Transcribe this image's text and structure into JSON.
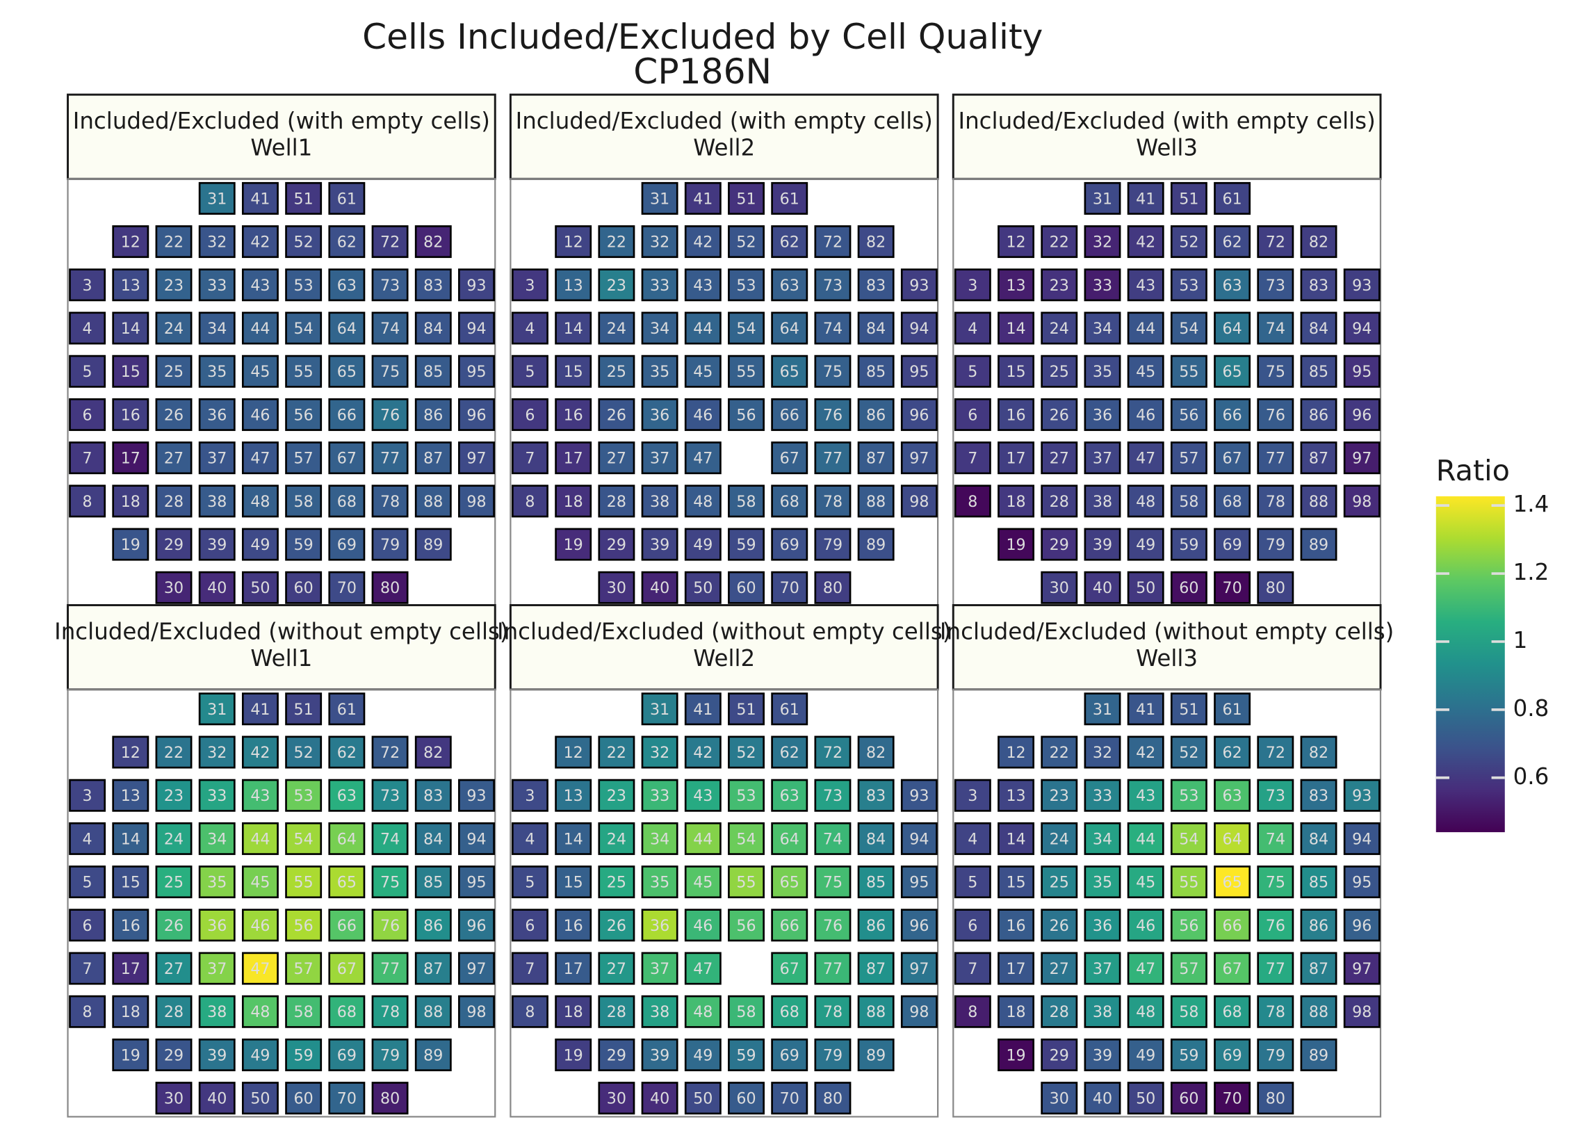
{
  "chart_data": {
    "type": "heatmap",
    "title": "Cells Included/Excluded by Cell Quality",
    "subtitle": "CP186N",
    "colorscale": "viridis",
    "legend_title": "Ratio",
    "zlim": [
      0.44,
      1.427
    ],
    "zticks": [
      0.6,
      0.8,
      1,
      1.2,
      1.4
    ],
    "panels": [
      {
        "strip": "Included/Excluded (with empty cells)",
        "well": "Well1",
        "labels": [
          31,
          41,
          51,
          61,
          12,
          22,
          32,
          42,
          52,
          62,
          72,
          82,
          3,
          13,
          23,
          33,
          43,
          53,
          63,
          73,
          83,
          93,
          4,
          14,
          24,
          34,
          44,
          54,
          64,
          74,
          84,
          94,
          5,
          15,
          25,
          35,
          45,
          55,
          65,
          75,
          85,
          95,
          6,
          16,
          26,
          36,
          46,
          56,
          66,
          76,
          86,
          96,
          7,
          17,
          27,
          37,
          47,
          57,
          67,
          77,
          87,
          97,
          8,
          18,
          28,
          38,
          48,
          58,
          68,
          78,
          88,
          98,
          19,
          29,
          39,
          49,
          59,
          69,
          79,
          89,
          30,
          40,
          50,
          60,
          70,
          80
        ],
        "values": [
          0.82,
          0.66,
          0.6,
          0.65,
          0.6,
          0.72,
          0.7,
          0.68,
          0.66,
          0.68,
          0.62,
          0.54,
          0.62,
          0.66,
          0.75,
          0.74,
          0.72,
          0.72,
          0.75,
          0.72,
          0.7,
          0.64,
          0.62,
          0.64,
          0.74,
          0.72,
          0.74,
          0.74,
          0.76,
          0.74,
          0.7,
          0.66,
          0.62,
          0.58,
          0.72,
          0.74,
          0.74,
          0.74,
          0.76,
          0.74,
          0.72,
          0.68,
          0.6,
          0.62,
          0.72,
          0.72,
          0.72,
          0.74,
          0.76,
          0.82,
          0.72,
          0.68,
          0.6,
          0.5,
          0.72,
          0.7,
          0.7,
          0.72,
          0.74,
          0.76,
          0.72,
          0.66,
          0.62,
          0.62,
          0.7,
          0.72,
          0.74,
          0.74,
          0.74,
          0.72,
          0.72,
          0.7,
          0.7,
          0.62,
          0.64,
          0.66,
          0.7,
          0.72,
          0.68,
          0.66,
          0.54,
          0.56,
          0.6,
          0.62,
          0.66,
          0.5
        ]
      },
      {
        "strip": "Included/Excluded (with empty cells)",
        "well": "Well2",
        "labels": [
          31,
          41,
          51,
          61,
          12,
          22,
          32,
          42,
          52,
          62,
          72,
          82,
          3,
          13,
          23,
          33,
          43,
          53,
          63,
          73,
          83,
          93,
          4,
          14,
          24,
          34,
          44,
          54,
          64,
          74,
          84,
          94,
          5,
          15,
          25,
          35,
          45,
          55,
          65,
          75,
          85,
          95,
          6,
          16,
          26,
          36,
          46,
          56,
          66,
          76,
          86,
          96,
          7,
          17,
          27,
          37,
          47,
          67,
          77,
          87,
          97,
          8,
          18,
          28,
          38,
          48,
          58,
          68,
          78,
          88,
          98,
          19,
          29,
          39,
          49,
          59,
          69,
          79,
          89,
          30,
          40,
          50,
          60,
          70,
          80
        ],
        "values": [
          0.72,
          0.6,
          0.58,
          0.6,
          0.64,
          0.76,
          0.74,
          0.7,
          0.7,
          0.66,
          0.7,
          0.66,
          0.6,
          0.76,
          0.86,
          0.76,
          0.72,
          0.72,
          0.74,
          0.74,
          0.7,
          0.62,
          0.62,
          0.64,
          0.72,
          0.74,
          0.76,
          0.76,
          0.76,
          0.72,
          0.7,
          0.64,
          0.62,
          0.64,
          0.74,
          0.74,
          0.74,
          0.74,
          0.8,
          0.74,
          0.7,
          0.64,
          0.6,
          0.6,
          0.7,
          0.76,
          0.7,
          0.74,
          0.74,
          0.78,
          0.74,
          0.66,
          0.62,
          0.58,
          0.72,
          0.74,
          0.74,
          0.74,
          0.78,
          0.72,
          0.68,
          0.62,
          0.58,
          0.7,
          0.7,
          0.72,
          0.74,
          0.74,
          0.74,
          0.72,
          0.66,
          0.56,
          0.6,
          0.64,
          0.64,
          0.66,
          0.68,
          0.66,
          0.68,
          0.58,
          0.54,
          0.62,
          0.68,
          0.66,
          0.62
        ]
      },
      {
        "strip": "Included/Excluded (with empty cells)",
        "well": "Well3",
        "labels": [
          31,
          41,
          51,
          61,
          12,
          22,
          32,
          42,
          52,
          62,
          72,
          82,
          3,
          13,
          23,
          33,
          43,
          53,
          63,
          73,
          83,
          93,
          4,
          14,
          24,
          34,
          44,
          54,
          64,
          74,
          84,
          94,
          5,
          15,
          25,
          35,
          45,
          55,
          65,
          75,
          85,
          95,
          6,
          16,
          26,
          36,
          46,
          56,
          66,
          76,
          86,
          96,
          7,
          17,
          27,
          37,
          47,
          57,
          67,
          77,
          87,
          97,
          8,
          18,
          28,
          38,
          48,
          58,
          68,
          78,
          88,
          98,
          19,
          29,
          39,
          49,
          59,
          69,
          79,
          89,
          30,
          40,
          50,
          60,
          70,
          80
        ],
        "values": [
          0.66,
          0.64,
          0.62,
          0.64,
          0.6,
          0.6,
          0.54,
          0.6,
          0.64,
          0.66,
          0.62,
          0.62,
          0.58,
          0.52,
          0.58,
          0.52,
          0.62,
          0.66,
          0.8,
          0.7,
          0.64,
          0.62,
          0.6,
          0.56,
          0.64,
          0.66,
          0.7,
          0.72,
          0.82,
          0.76,
          0.66,
          0.6,
          0.6,
          0.62,
          0.64,
          0.66,
          0.7,
          0.76,
          0.86,
          0.7,
          0.66,
          0.58,
          0.6,
          0.64,
          0.66,
          0.7,
          0.7,
          0.72,
          0.76,
          0.72,
          0.66,
          0.6,
          0.6,
          0.62,
          0.62,
          0.64,
          0.64,
          0.68,
          0.72,
          0.7,
          0.64,
          0.52,
          0.46,
          0.6,
          0.62,
          0.64,
          0.66,
          0.68,
          0.7,
          0.68,
          0.64,
          0.56,
          0.46,
          0.58,
          0.62,
          0.64,
          0.66,
          0.66,
          0.68,
          0.7,
          0.62,
          0.6,
          0.6,
          0.48,
          0.46,
          0.64
        ]
      },
      {
        "strip": "Included/Excluded (without empty cells)",
        "well": "Well1",
        "labels": [
          31,
          41,
          51,
          61,
          12,
          22,
          32,
          42,
          52,
          62,
          72,
          82,
          3,
          13,
          23,
          33,
          43,
          53,
          63,
          73,
          83,
          93,
          4,
          14,
          24,
          34,
          44,
          54,
          64,
          74,
          84,
          94,
          5,
          15,
          25,
          35,
          45,
          55,
          65,
          75,
          85,
          95,
          6,
          16,
          26,
          36,
          46,
          56,
          66,
          76,
          86,
          96,
          7,
          17,
          27,
          37,
          47,
          57,
          67,
          77,
          87,
          97,
          8,
          18,
          28,
          38,
          48,
          58,
          68,
          78,
          88,
          98,
          19,
          29,
          39,
          49,
          59,
          69,
          79,
          89,
          30,
          40,
          50,
          60,
          70,
          80
        ],
        "values": [
          0.9,
          0.66,
          0.64,
          0.68,
          0.64,
          0.82,
          0.84,
          0.86,
          0.82,
          0.84,
          0.72,
          0.6,
          0.64,
          0.7,
          0.94,
          1.02,
          1.12,
          1.2,
          1.06,
          0.9,
          0.82,
          0.72,
          0.66,
          0.74,
          1.02,
          1.14,
          1.28,
          1.28,
          1.22,
          1.04,
          0.82,
          0.74,
          0.66,
          0.68,
          1.06,
          1.24,
          1.22,
          1.3,
          1.3,
          1.06,
          0.86,
          0.74,
          0.64,
          0.72,
          1.1,
          1.28,
          1.28,
          1.3,
          1.16,
          1.26,
          0.92,
          0.82,
          0.66,
          0.56,
          0.92,
          1.24,
          1.42,
          1.26,
          1.28,
          1.12,
          0.86,
          0.76,
          0.66,
          0.68,
          0.88,
          1.04,
          1.16,
          1.12,
          1.08,
          0.98,
          0.86,
          0.76,
          0.7,
          0.7,
          0.82,
          0.84,
          0.92,
          0.86,
          0.86,
          0.78,
          0.58,
          0.6,
          0.66,
          0.72,
          0.76,
          0.52
        ]
      },
      {
        "strip": "Included/Excluded (without empty cells)",
        "well": "Well2",
        "labels": [
          31,
          41,
          51,
          61,
          12,
          22,
          32,
          42,
          52,
          62,
          72,
          82,
          3,
          13,
          23,
          33,
          43,
          53,
          63,
          73,
          83,
          93,
          4,
          14,
          24,
          34,
          44,
          54,
          64,
          74,
          84,
          94,
          5,
          15,
          25,
          35,
          45,
          55,
          65,
          75,
          85,
          95,
          6,
          16,
          26,
          36,
          46,
          56,
          66,
          76,
          86,
          96,
          7,
          17,
          27,
          37,
          47,
          67,
          77,
          87,
          97,
          8,
          18,
          28,
          38,
          48,
          58,
          68,
          78,
          88,
          98,
          19,
          29,
          39,
          49,
          59,
          69,
          79,
          89,
          30,
          40,
          50,
          60,
          70,
          80
        ],
        "values": [
          0.86,
          0.7,
          0.66,
          0.68,
          0.78,
          0.84,
          0.9,
          0.84,
          0.84,
          0.82,
          0.86,
          0.78,
          0.66,
          0.82,
          1.0,
          1.1,
          1.04,
          1.12,
          1.1,
          1.0,
          0.86,
          0.7,
          0.66,
          0.74,
          1.02,
          1.2,
          1.24,
          1.2,
          1.14,
          1.1,
          0.84,
          0.72,
          0.66,
          0.74,
          1.04,
          1.14,
          1.16,
          1.26,
          1.22,
          1.12,
          0.92,
          0.74,
          0.64,
          0.72,
          0.96,
          1.3,
          1.1,
          1.14,
          1.14,
          1.12,
          0.92,
          0.76,
          0.64,
          0.72,
          0.96,
          1.12,
          1.08,
          1.08,
          1.1,
          0.94,
          0.82,
          0.66,
          0.62,
          0.9,
          1.0,
          1.12,
          1.1,
          1.02,
          0.98,
          0.92,
          0.76,
          0.62,
          0.7,
          0.78,
          0.78,
          0.82,
          0.8,
          0.82,
          0.8,
          0.56,
          0.56,
          0.66,
          0.72,
          0.7,
          0.7
        ]
      },
      {
        "strip": "Included/Excluded (without empty cells)",
        "well": "Well3",
        "labels": [
          31,
          41,
          51,
          61,
          12,
          22,
          32,
          42,
          52,
          62,
          72,
          82,
          3,
          13,
          23,
          33,
          43,
          53,
          63,
          73,
          83,
          93,
          4,
          14,
          24,
          34,
          44,
          54,
          64,
          74,
          84,
          94,
          5,
          15,
          25,
          35,
          45,
          55,
          65,
          75,
          85,
          95,
          6,
          16,
          26,
          36,
          46,
          56,
          66,
          76,
          86,
          96,
          7,
          17,
          27,
          37,
          47,
          57,
          67,
          77,
          87,
          97,
          8,
          18,
          28,
          38,
          48,
          58,
          68,
          78,
          88,
          98,
          19,
          29,
          39,
          49,
          59,
          69,
          79,
          89,
          30,
          40,
          50,
          60,
          70,
          80
        ],
        "values": [
          0.76,
          0.7,
          0.7,
          0.74,
          0.7,
          0.72,
          0.7,
          0.76,
          0.78,
          0.82,
          0.82,
          0.8,
          0.64,
          0.64,
          0.82,
          0.88,
          1.0,
          1.12,
          1.14,
          1.0,
          0.8,
          0.86,
          0.64,
          0.62,
          0.82,
          1.0,
          1.06,
          1.26,
          1.32,
          1.12,
          0.82,
          0.7,
          0.64,
          0.68,
          0.88,
          1.0,
          1.04,
          1.26,
          1.43,
          1.08,
          0.92,
          0.7,
          0.64,
          0.72,
          0.82,
          0.94,
          1.02,
          1.16,
          1.22,
          1.06,
          0.86,
          0.74,
          0.64,
          0.7,
          0.82,
          0.98,
          1.08,
          1.14,
          1.16,
          1.04,
          0.86,
          0.56,
          0.52,
          0.7,
          0.84,
          0.92,
          0.98,
          1.02,
          0.98,
          0.9,
          0.84,
          0.6,
          0.46,
          0.62,
          0.72,
          0.74,
          0.82,
          0.86,
          0.82,
          0.76,
          0.7,
          0.7,
          0.64,
          0.5,
          0.46,
          0.7
        ]
      }
    ]
  }
}
